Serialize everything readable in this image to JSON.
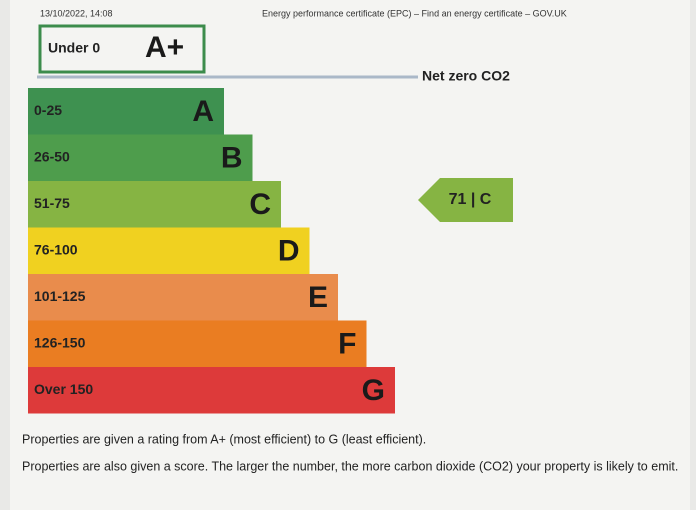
{
  "header": {
    "timestamp": "13/10/2022, 14:08",
    "page_title": "Energy performance certificate (EPC) – Find an energy certificate – GOV.UK"
  },
  "top_band": {
    "range": "Under 0",
    "letter": "A+",
    "color": "#3c8c4c"
  },
  "net_zero_label": "Net zero CO2",
  "bands": [
    {
      "range": "0-25",
      "letter": "A",
      "color": "#3e9150"
    },
    {
      "range": "26-50",
      "letter": "B",
      "color": "#4e9d4c"
    },
    {
      "range": "51-75",
      "letter": "C",
      "color": "#86b443"
    },
    {
      "range": "76-100",
      "letter": "D",
      "color": "#f0d120"
    },
    {
      "range": "101-125",
      "letter": "E",
      "color": "#e98c4c"
    },
    {
      "range": "126-150",
      "letter": "F",
      "color": "#ea7d22"
    },
    {
      "range": "Over 150",
      "letter": "G",
      "color": "#dd3a3a"
    }
  ],
  "current_rating": {
    "label": "71 | C",
    "color": "#86b443"
  },
  "notes": [
    "Properties are given a rating from A+ (most efficient) to G (least efficient).",
    "Properties are also given a score. The larger the number, the more carbon dioxide (CO2) your property is likely to emit."
  ]
}
